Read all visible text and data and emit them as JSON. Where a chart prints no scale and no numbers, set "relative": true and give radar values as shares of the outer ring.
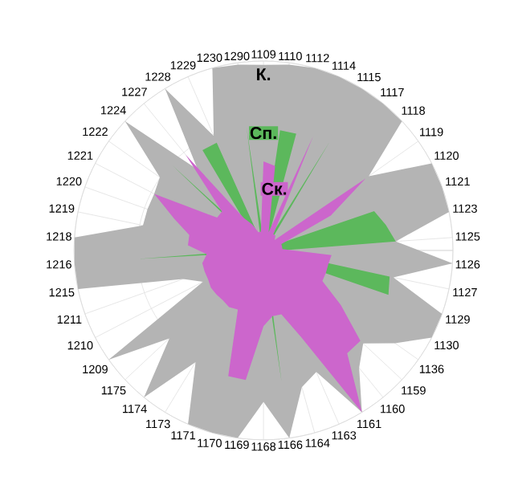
{
  "chart_data": {
    "type": "radar",
    "relative": true,
    "grid": true,
    "marker": "none",
    "categories": [
      "1109",
      "1110",
      "1112",
      "1114",
      "1115",
      "1117",
      "1118",
      "1119",
      "1120",
      "1121",
      "1123",
      "1125",
      "1126",
      "1127",
      "1129",
      "1130",
      "1136",
      "1159",
      "1160",
      "1161",
      "1163",
      "1164",
      "1166",
      "1168",
      "1169",
      "1170",
      "1171",
      "1173",
      "1174",
      "1175",
      "1209",
      "1210",
      "1211",
      "1215",
      "1216",
      "1218",
      "1219",
      "1220",
      "1221",
      "1222",
      "1224",
      "1227",
      "1228",
      "1229",
      "1230",
      "1290"
    ],
    "series": [
      {
        "name": "К.",
        "color": "#b4b4b4",
        "values": [
          0.98,
          0.99,
          1,
          1,
          1,
          1,
          1,
          0.68,
          1,
          1,
          1,
          0.7,
          1,
          0.7,
          1,
          1,
          0.85,
          0.72,
          0.8,
          1,
          0.7,
          0.75,
          1,
          0.8,
          1,
          1,
          1,
          0.69,
          1,
          0.68,
          1,
          0.36,
          0.45,
          1,
          1,
          1,
          0.65,
          0.65,
          0.65,
          0.67,
          1,
          0.55,
          1,
          0.66,
          1,
          0.99
        ]
      },
      {
        "name": "Сп.",
        "color": "#5cb85c",
        "values": [
          0.05,
          0.64,
          0.64,
          0.05,
          0.67,
          0.05,
          0.05,
          0.05,
          0.05,
          0.62,
          0.66,
          0.7,
          0.05,
          0.68,
          0.7,
          0.05,
          0.05,
          0.05,
          0.05,
          0.05,
          0.05,
          0.05,
          0.7,
          0.05,
          0.05,
          0.05,
          0.05,
          0.05,
          0.05,
          0.05,
          0.05,
          0.05,
          0.05,
          0.05,
          0.66,
          0.05,
          0.05,
          0.05,
          0.05,
          0.05,
          0.66,
          0.05,
          0.62,
          0.62,
          0.05,
          0.66
        ]
      },
      {
        "name": "Ск.",
        "color": "#cc66cc",
        "values": [
          0.47,
          0.45,
          0.1,
          0.66,
          0.1,
          0.1,
          0.08,
          0.66,
          0.4,
          0.1,
          0.1,
          0.1,
          0.36,
          0.35,
          0.35,
          0.35,
          0.5,
          0.7,
          0.7,
          1,
          0.5,
          0.35,
          0.35,
          0.4,
          0.69,
          0.69,
          0.34,
          0.35,
          0.34,
          0.34,
          0.34,
          0.33,
          0.33,
          0.33,
          0.3,
          0.4,
          0.4,
          0.5,
          0.65,
          0.3,
          0.3,
          0.65,
          0.2,
          0.15,
          0.1,
          0.1
        ]
      }
    ]
  }
}
